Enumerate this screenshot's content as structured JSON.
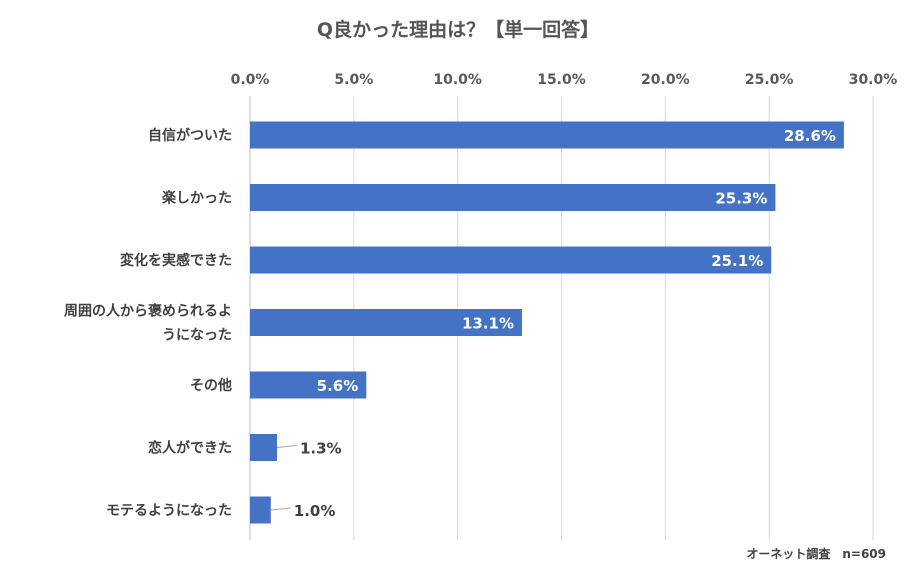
{
  "chart_data": {
    "type": "bar",
    "orientation": "horizontal",
    "title": "Q良かった理由は？【単一回答】",
    "categories": [
      [
        "自信がついた"
      ],
      [
        "楽しかった"
      ],
      [
        "変化を実感できた"
      ],
      [
        "周囲の人から褒められるよ",
        "うになった"
      ],
      [
        "その他"
      ],
      [
        "恋人ができた"
      ],
      [
        "モテるようになった"
      ]
    ],
    "values": [
      28.6,
      25.3,
      25.1,
      13.1,
      5.6,
      1.3,
      1.0
    ],
    "value_labels": [
      "28.6%",
      "25.3%",
      "25.1%",
      "13.1%",
      "5.6%",
      "1.3%",
      "1.0%"
    ],
    "xlim": [
      0,
      30
    ],
    "xticks": [
      0,
      5,
      10,
      15,
      20,
      25,
      30
    ],
    "xtick_labels": [
      "0.0%",
      "5.0%",
      "10.0%",
      "15.0%",
      "20.0%",
      "25.0%",
      "30.0%"
    ],
    "x_axis_position": "top",
    "grid": true,
    "bar_color": "#4472c4",
    "note": "オーネット調査　n=609"
  }
}
